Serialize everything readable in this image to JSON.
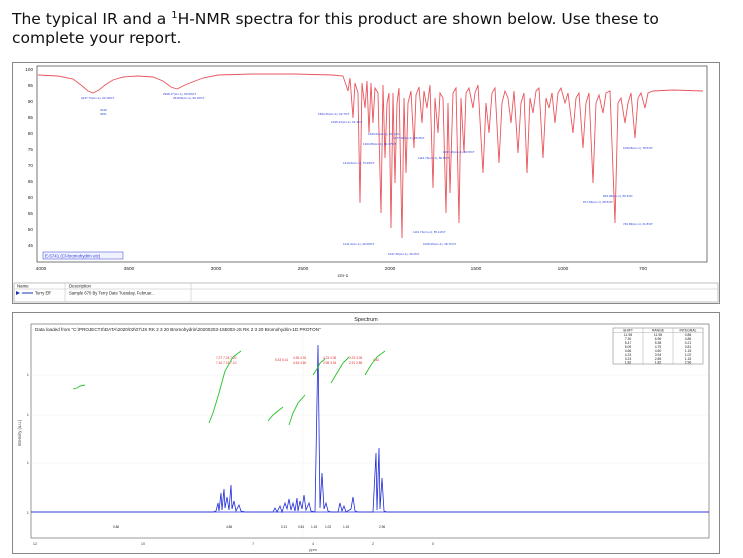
{
  "instruction": {
    "text_before": "The typical IR and a ",
    "superscript": "1",
    "text_after": "H-NMR spectra for this product are shown below. Use these to complete your report."
  },
  "ir_spectrum": {
    "y_ticks": [
      "100",
      "95",
      "90",
      "85",
      "80",
      "75",
      "70",
      "65",
      "60",
      "55",
      "50",
      "45"
    ],
    "x_ticks": [
      "4000",
      "3500",
      "3000",
      "2500",
      "2000",
      "1500",
      "1000",
      "700"
    ],
    "x_unit": "cm-1",
    "sample_label": "E-5741 (Cl-bromohydrin etc)",
    "legend_headers": [
      "Name",
      "Description"
    ],
    "legend_row": [
      "Terry Eff",
      "Sample 670 By Terry Date Tuesday, Februar..."
    ],
    "colors": {
      "spectrum": "#e8555c",
      "labels": "#2a3fd6",
      "legend_marker": "#1a36b8"
    }
  },
  "nmr_spectrum": {
    "title": "Spectrum",
    "source_text": "Data loaded from \"C:\\PROJECTS\\DATA\\2020\\02\\07\\JS RK 2 3 20 Bromohydrin\\20200203-155003-JS RK 2 3 20 Bromohydrin-1D PROTON\"",
    "x_axis_label": "ppm",
    "y_axis_label": "Intensity (a.u.)",
    "table_headers": [
      "SHIFT",
      "RANGE",
      "INTEGRAL"
    ],
    "table_rows": [
      [
        "11.98",
        "11.98",
        "0.86"
      ],
      [
        "7.30",
        "6.96",
        "4.86"
      ],
      [
        "5.47",
        "5.38",
        "0.21"
      ],
      [
        "5.09",
        "4.75",
        "0.81"
      ],
      [
        "4.66",
        "4.60",
        "1.15"
      ],
      [
        "4.23",
        "3.94",
        "1.02"
      ],
      [
        "3.23",
        "2.85",
        "1.15"
      ],
      [
        "1.82",
        "1.82",
        "2.96"
      ]
    ],
    "colors": {
      "spectrum": "#1f2bd6",
      "integral": "#22c224",
      "peak_labels": "#e23030"
    }
  }
}
